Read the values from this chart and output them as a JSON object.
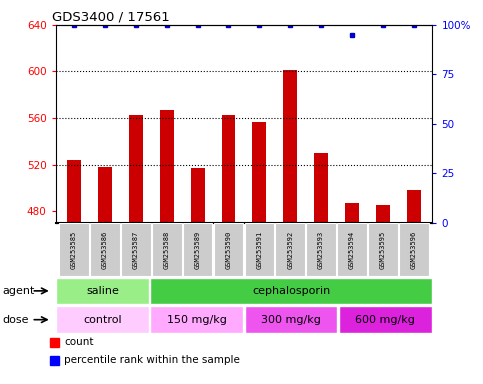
{
  "title": "GDS3400 / 17561",
  "samples": [
    "GSM253585",
    "GSM253586",
    "GSM253587",
    "GSM253588",
    "GSM253589",
    "GSM253590",
    "GSM253591",
    "GSM253592",
    "GSM253593",
    "GSM253594",
    "GSM253595",
    "GSM253596"
  ],
  "bar_values": [
    524,
    518,
    563,
    567,
    517,
    563,
    557,
    601,
    530,
    487,
    485,
    498
  ],
  "percentile_values": [
    100,
    100,
    100,
    100,
    100,
    100,
    100,
    100,
    100,
    95,
    100,
    100
  ],
  "ylim_left": [
    470,
    640
  ],
  "ylim_right": [
    0,
    100
  ],
  "yticks_left": [
    480,
    520,
    560,
    600,
    640
  ],
  "yticks_right": [
    0,
    25,
    50,
    75,
    100
  ],
  "bar_color": "#cc0000",
  "percentile_color": "#0000cc",
  "agent_saline_color": "#99ee88",
  "agent_ceph_color": "#44cc44",
  "tick_bg_color": "#cccccc",
  "agent_row": [
    {
      "label": "saline",
      "start": 0,
      "end": 3
    },
    {
      "label": "cephalosporin",
      "start": 3,
      "end": 12
    }
  ],
  "dose_row": [
    {
      "label": "control",
      "start": 0,
      "end": 3,
      "color": "#ffccff"
    },
    {
      "label": "150 mg/kg",
      "start": 3,
      "end": 6,
      "color": "#ffaaff"
    },
    {
      "label": "300 mg/kg",
      "start": 6,
      "end": 9,
      "color": "#ee55ee"
    },
    {
      "label": "600 mg/kg",
      "start": 9,
      "end": 12,
      "color": "#dd22dd"
    }
  ]
}
